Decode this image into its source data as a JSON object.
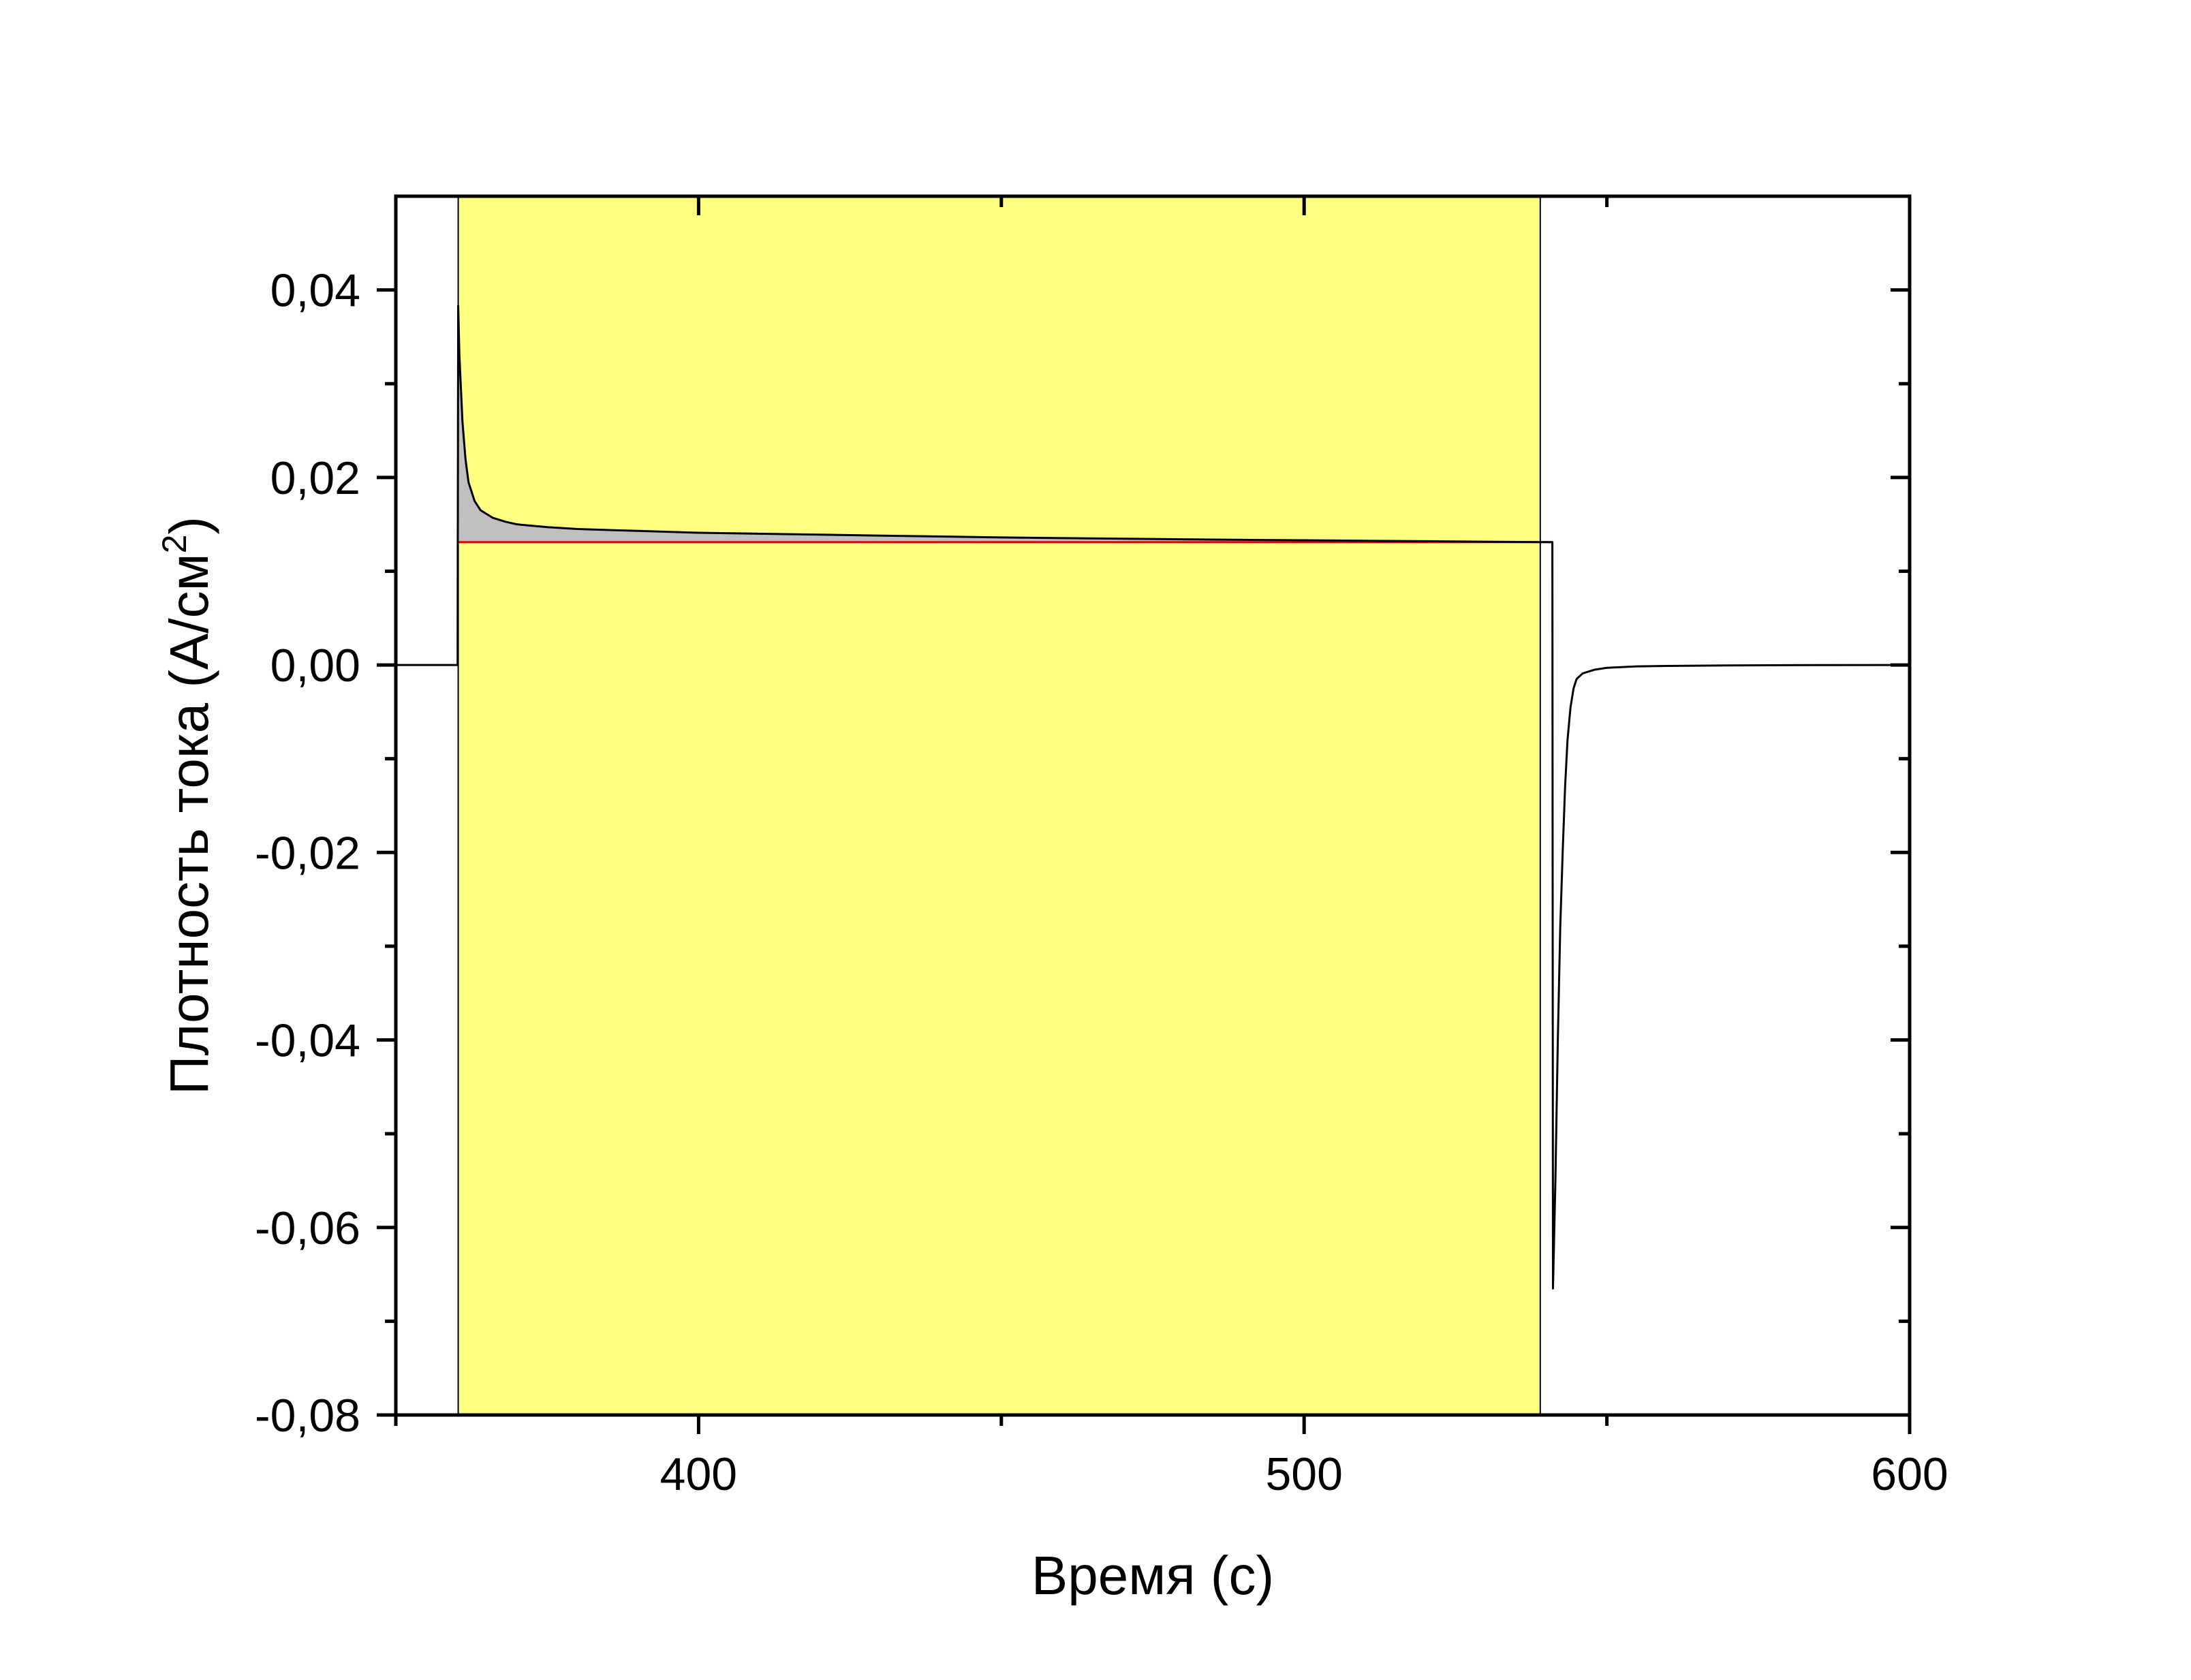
{
  "chart_data": {
    "type": "line",
    "title": "",
    "xlabel": "Время (с)",
    "ylabel": {
      "prefix": "Плотность тока (А/см",
      "superscript": "2",
      "suffix": ")"
    },
    "xlim": [
      350,
      600
    ],
    "ylim": [
      -0.08,
      0.05
    ],
    "x_ticks": [
      {
        "value": 400,
        "label": "400"
      },
      {
        "value": 500,
        "label": "500"
      },
      {
        "value": 600,
        "label": "600"
      }
    ],
    "x_minor_ticks": [
      350,
      450,
      550
    ],
    "y_ticks": [
      {
        "value": 0.04,
        "label": "0,04"
      },
      {
        "value": 0.02,
        "label": "0,02"
      },
      {
        "value": 0.0,
        "label": "0,00"
      },
      {
        "value": -0.02,
        "label": "-0,02"
      },
      {
        "value": -0.04,
        "label": "-0,04"
      },
      {
        "value": -0.06,
        "label": "-0,06"
      },
      {
        "value": -0.08,
        "label": "-0,08"
      }
    ],
    "y_minor_ticks": [
      0.03,
      0.01,
      -0.01,
      -0.03,
      -0.05,
      -0.07
    ],
    "grid": false,
    "legend": "none",
    "highlight_region": {
      "x_start": 360.3,
      "x_end": 539.0,
      "color": "#ffff80"
    },
    "baseline": {
      "value": 0.0131,
      "x_start": 360.3,
      "x_end": 541.0,
      "color": "#e60000"
    },
    "integrated_area_color": "#c0c0c0",
    "series": [
      {
        "color": "#000000",
        "x": [
          350,
          360.2,
          360.3,
          360.5,
          361,
          361.5,
          362,
          363,
          364,
          366,
          368,
          370,
          375,
          380,
          390,
          400,
          420,
          450,
          480,
          500,
          520,
          539,
          541,
          541.1,
          541.5,
          541.9,
          542.3,
          542.7,
          543.1,
          543.5,
          544,
          544.5,
          545,
          546,
          548,
          550,
          555,
          560,
          570,
          580,
          600
        ],
        "y": [
          0,
          0,
          0.0383,
          0.033,
          0.026,
          0.022,
          0.0195,
          0.0175,
          0.0165,
          0.0157,
          0.0153,
          0.015,
          0.0147,
          0.0145,
          0.0143,
          0.0141,
          0.0139,
          0.0136,
          0.0134,
          0.0133,
          0.0132,
          0.0131,
          0.0131,
          -0.0665,
          -0.055,
          -0.04,
          -0.028,
          -0.02,
          -0.013,
          -0.008,
          -0.0045,
          -0.0025,
          -0.0015,
          -0.0009,
          -0.0005,
          -0.0003,
          -0.00015,
          -0.0001,
          -5e-05,
          -2e-05,
          0
        ]
      }
    ]
  }
}
